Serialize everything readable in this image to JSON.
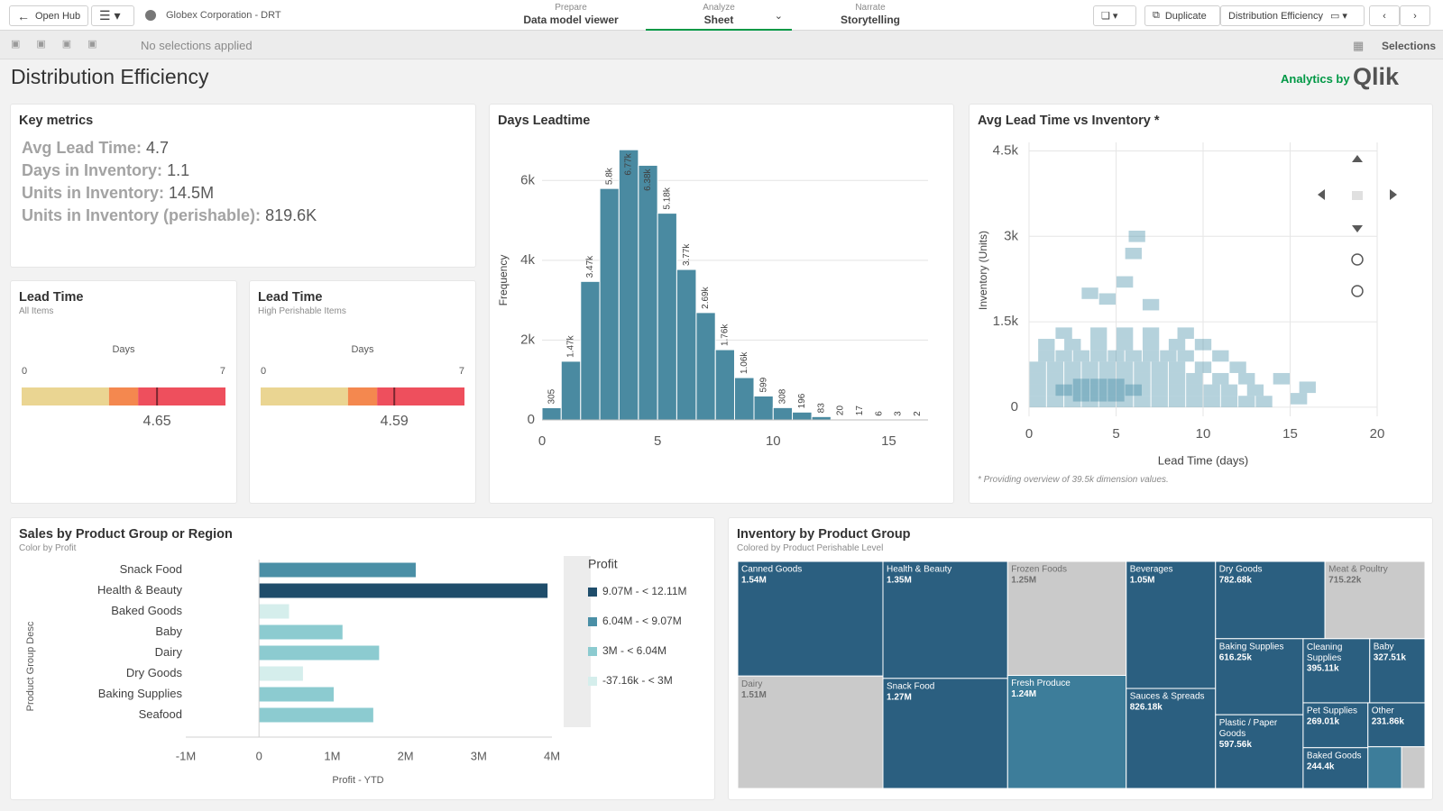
{
  "toolbar": {
    "open_hub": "Open Hub",
    "app_name": "Globex Corporation - DRT",
    "tabs": [
      {
        "step": "Prepare",
        "label": "Data model viewer"
      },
      {
        "step": "Analyze",
        "label": "Sheet"
      },
      {
        "step": "Narrate",
        "label": "Storytelling"
      }
    ],
    "duplicate": "Duplicate",
    "sheet_menu": "Distribution Efficiency"
  },
  "selection_bar": {
    "status": "No selections applied",
    "selections": "Selections"
  },
  "sheet": {
    "title": "Distribution Efficiency",
    "branding_prefix": "Analytics by",
    "branding": "Qlik"
  },
  "key_metrics": {
    "title": "Key metrics",
    "items": [
      {
        "label": "Avg Lead Time:",
        "value": "4.7"
      },
      {
        "label": "Days in Inventory:",
        "value": "1.1"
      },
      {
        "label": "Units in Inventory:",
        "value": "14.5M"
      },
      {
        "label": "Units in Inventory (perishable):",
        "value": "819.6K"
      }
    ]
  },
  "chart_data": [
    {
      "type": "gauge",
      "title": "Lead Time",
      "subtitle": "All Items",
      "axis_label": "Days",
      "xlim": [
        0,
        7
      ],
      "xticks": [
        0,
        7
      ],
      "value": 4.65,
      "marker_color": "#7a2730",
      "bands": [
        {
          "from": 0,
          "to": 3,
          "color": "#ead592"
        },
        {
          "from": 3,
          "to": 4,
          "color": "#f4884f"
        },
        {
          "from": 4,
          "to": 7,
          "color": "#ee4f5d"
        }
      ]
    },
    {
      "type": "gauge",
      "title": "Lead Time",
      "subtitle": "High Perishable Items",
      "axis_label": "Days",
      "xlim": [
        0,
        7
      ],
      "xticks": [
        0,
        7
      ],
      "value": 4.59,
      "marker_color": "#7a2730",
      "bands": [
        {
          "from": 0,
          "to": 3,
          "color": "#ead592"
        },
        {
          "from": 3,
          "to": 4,
          "color": "#f4884f"
        },
        {
          "from": 4,
          "to": 7,
          "color": "#ee4f5d"
        }
      ]
    },
    {
      "type": "histogram",
      "title": "Days Leadtime",
      "ylabel": "Frequency",
      "bins": [
        0,
        0.83,
        1.67,
        2.5,
        3.33,
        4.17,
        5,
        5.83,
        6.67,
        7.5,
        8.33,
        9.17,
        10,
        10.83,
        11.67,
        12.5,
        13.33,
        14.17,
        15,
        15.83,
        16.67
      ],
      "values": [
        305,
        1470,
        3470,
        5800,
        6770,
        6380,
        5180,
        3770,
        2690,
        1760,
        1060,
        599,
        308,
        196,
        83,
        20,
        17,
        6,
        3,
        2
      ],
      "value_labels": [
        "305",
        "1.47k",
        "3.47k",
        "5.8k",
        "6.77k",
        "6.38k",
        "5.18k",
        "3.77k",
        "2.69k",
        "1.76k",
        "1.06k",
        "599",
        "308",
        "196",
        "83",
        "20",
        "17",
        "6",
        "3",
        "2"
      ],
      "color": "#4a8aa1",
      "xlim": [
        0,
        16.7
      ],
      "ylim": [
        0,
        7000
      ],
      "xticks": [
        0,
        5,
        10,
        15
      ],
      "yticks": [
        0,
        {
          "value": 2000,
          "label": "2k"
        },
        {
          "value": 4000,
          "label": "4k"
        },
        {
          "value": 6000,
          "label": "6k"
        }
      ],
      "grid": true
    },
    {
      "type": "scatter",
      "title": "Avg Lead Time vs Inventory *",
      "xlabel": "Lead Time (days)",
      "ylabel": "Inventory (Units)",
      "footnote": "* Providing overview of 39.5k dimension values.",
      "x": [
        0.5,
        1.5,
        2.5,
        3.5,
        4.5,
        5.5,
        6.5,
        7.5,
        8.5,
        9.5,
        10.5,
        11.5,
        12.5,
        13.5,
        0.5,
        1.5,
        2.5,
        3.5,
        4.5,
        5.5,
        6.5,
        7.5,
        8.5,
        9.5,
        10.5,
        11.5,
        13,
        0.5,
        1.5,
        2.5,
        3.5,
        4.5,
        5.5,
        6.5,
        7.5,
        8.5,
        9.5,
        11,
        12.5,
        14.5,
        0.5,
        1.5,
        2.5,
        3.5,
        4.5,
        5.5,
        6.5,
        7.5,
        8.5,
        10,
        12,
        1,
        2,
        3,
        4,
        5,
        6,
        7,
        8,
        9,
        11,
        1,
        2.5,
        4,
        5.5,
        7,
        8.5,
        10,
        2,
        4,
        5.5,
        7,
        9,
        3.5,
        4.5,
        5.5,
        6,
        6.2,
        7,
        15.5,
        16,
        3,
        4,
        5,
        3,
        4,
        5,
        2,
        6
      ],
      "values": [
        100,
        100,
        100,
        100,
        100,
        100,
        100,
        100,
        100,
        100,
        100,
        100,
        100,
        100,
        300,
        300,
        300,
        300,
        300,
        300,
        300,
        300,
        300,
        300,
        300,
        300,
        300,
        500,
        500,
        500,
        500,
        500,
        500,
        500,
        500,
        500,
        500,
        500,
        500,
        500,
        700,
        700,
        700,
        700,
        700,
        700,
        700,
        700,
        700,
        700,
        700,
        900,
        900,
        900,
        900,
        900,
        900,
        900,
        900,
        900,
        900,
        1100,
        1100,
        1100,
        1100,
        1100,
        1100,
        1100,
        1300,
        1300,
        1300,
        1300,
        1300,
        2000,
        1900,
        2200,
        2700,
        3000,
        1800,
        150,
        350,
        200,
        200,
        200,
        400,
        400,
        400,
        300,
        300
      ],
      "color": "#2a7d9b",
      "xlim": [
        0,
        20
      ],
      "ylim": [
        -160,
        4650
      ],
      "xticks": [
        0,
        5,
        10,
        15,
        20
      ],
      "yticks": [
        0,
        {
          "value": 1500,
          "label": "1.5k"
        },
        {
          "value": 3000,
          "label": "3k"
        },
        {
          "value": 4500,
          "label": "4.5k"
        }
      ],
      "grid": true
    },
    {
      "type": "bar",
      "orientation": "horizontal",
      "title": "Sales by Product Group or Region",
      "subtitle": "Color by Profit",
      "xlabel": "Profit - YTD",
      "ylabel": "Product Group Desc",
      "categories": [
        "Snack Food",
        "Health & Beauty",
        "Baked Goods",
        "Baby",
        "Dairy",
        "Dry Goods",
        "Baking Supplies",
        "Seafood"
      ],
      "values": [
        2140000,
        3940000,
        410000,
        1140000,
        1640000,
        600000,
        1020000,
        1560000
      ],
      "colors": [
        "#4a8fa6",
        "#1f4d6b",
        "#d5eeec",
        "#8ccbd0",
        "#8ccbd0",
        "#d5eeec",
        "#8ccbd0",
        "#8ccbd0"
      ],
      "xlim": [
        -1000000,
        4000000
      ],
      "xticks": [
        {
          "value": -1000000,
          "label": "-1M"
        },
        0,
        {
          "value": 1000000,
          "label": "1M"
        },
        {
          "value": 2000000,
          "label": "2M"
        },
        {
          "value": 3000000,
          "label": "3M"
        },
        {
          "value": 4000000,
          "label": "4M"
        }
      ],
      "legend": {
        "title": "Profit",
        "items": [
          {
            "label": "9.07M - < 12.11M",
            "color": "#1f4d6b"
          },
          {
            "label": "6.04M - < 9.07M",
            "color": "#4a8fa6"
          },
          {
            "label": "3M - < 6.04M",
            "color": "#8ccbd0"
          },
          {
            "label": "-37.16k - < 3M",
            "color": "#d5eeec"
          }
        ]
      }
    },
    {
      "type": "treemap",
      "title": "Inventory by Product Group",
      "subtitle": "Colored by Product Perishable Level",
      "categories": [
        "Canned Goods",
        "Dairy",
        "Health & Beauty",
        "Snack Food",
        "Frozen Foods",
        "Fresh Produce",
        "Beverages",
        "Sauces & Spreads",
        "Dry Goods",
        "Meat & Poultry",
        "Baking Supplies",
        "Plastic / Paper Goods",
        "Cleaning Supplies",
        "Baby",
        "Pet Supplies",
        "Baked Goods",
        "Other",
        null,
        null
      ],
      "values": [
        1540000,
        1510000,
        1350000,
        1270000,
        1250000,
        1240000,
        1050000,
        826180,
        782680,
        715220,
        616250,
        597560,
        395110,
        327510,
        269010,
        244400,
        231860,
        130000,
        90000
      ],
      "value_labels": [
        "1.54M",
        "1.51M",
        "1.35M",
        "1.27M",
        "1.25M",
        "1.24M",
        "1.05M",
        "826.18k",
        "782.68k",
        "715.22k",
        "616.25k",
        "597.56k",
        "395.11k",
        "327.51k",
        "269.01k",
        "244.4k",
        "231.86k",
        null,
        null
      ],
      "colors": [
        "#2b5f80",
        "#cacaca",
        "#2b5f80",
        "#2b5f80",
        "#cacaca",
        "#3d7d9a",
        "#2b5f80",
        "#2b5f80",
        "#2b5f80",
        "#cacaca",
        "#2b5f80",
        "#2b5f80",
        "#2b5f80",
        "#2b5f80",
        "#2b5f80",
        "#2b5f80",
        "#2b5f80",
        "#3d7d9a",
        "#cacaca"
      ]
    }
  ]
}
